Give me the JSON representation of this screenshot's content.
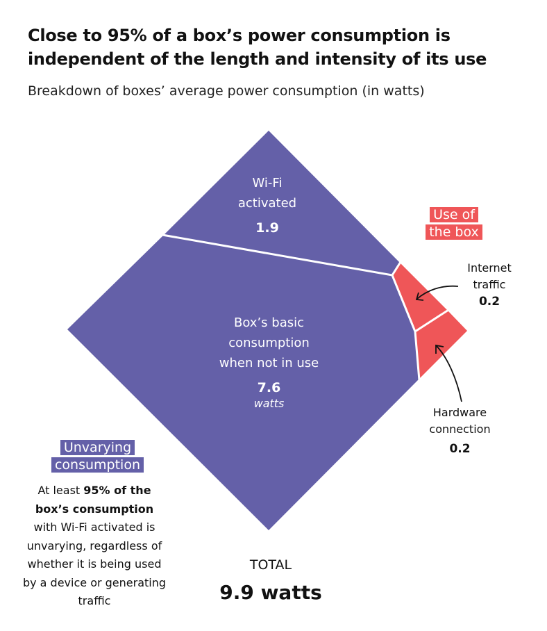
{
  "title": "Close to 95% of a box’s power consumption is independent of the length and intensity of its use",
  "subtitle": "Breakdown of boxes’ average power consumption (in watts)",
  "colors": {
    "unvarying": "#6460a8",
    "use": "#ef5658"
  },
  "chart_data": {
    "type": "voronoi-treemap",
    "unit": "watts",
    "groups": [
      {
        "name": "Unvarying consumption",
        "color": "#6460a8",
        "items": [
          {
            "label": "Wi-Fi activated",
            "value": 1.9
          },
          {
            "label": "Box’s basic consumption when not in use",
            "value": 7.6,
            "unit": "watts"
          }
        ]
      },
      {
        "name": "Use of the box",
        "color": "#ef5658",
        "items": [
          {
            "label": "Internet traffic",
            "value": 0.2
          },
          {
            "label": "Hardware connection",
            "value": 0.2
          }
        ]
      }
    ],
    "total": {
      "label": "TOTAL",
      "value": "9.9 watts"
    }
  },
  "labels": {
    "wifi": [
      "Wi-Fi",
      "activated"
    ],
    "wifi_value": "1.9",
    "basic": [
      "Box’s basic",
      "consumption",
      "when not in use"
    ],
    "basic_value": "7.6",
    "basic_unit": "watts",
    "use_tag": "Use of the box",
    "internet": [
      "Internet",
      "traffic"
    ],
    "internet_value": "0.2",
    "hardware": [
      "Hardware",
      "connection"
    ],
    "hardware_value": "0.2",
    "unvarying_tag": "Unvarying consumption",
    "note_pre": "At least ",
    "note_bold": "95% of the box’s consumption",
    "note_post": " with Wi-Fi activated is unvarying, regardless of whether it is being used by a device or generating traffic",
    "total_label": "TOTAL",
    "total_value": "9.9 watts"
  }
}
